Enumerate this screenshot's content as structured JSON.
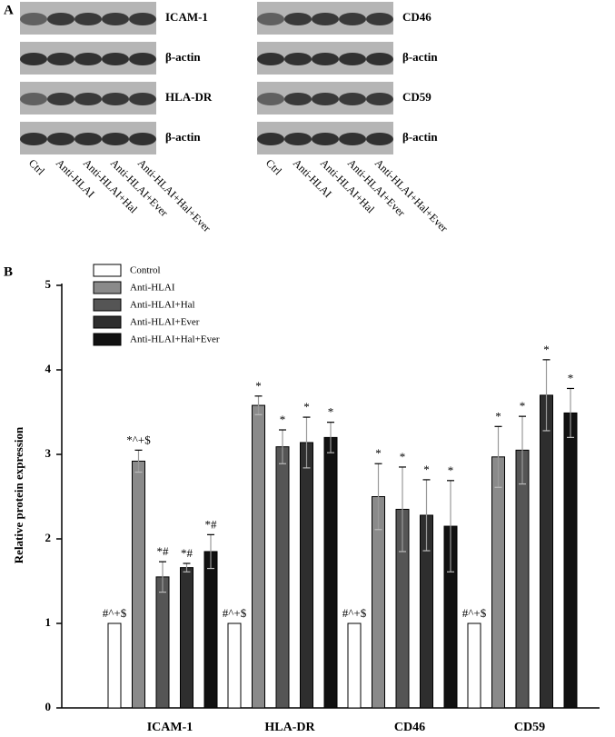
{
  "panel_a": {
    "label": "A",
    "blots": [
      {
        "rows": [
          "ICAM-1",
          "β-actin",
          "HLA-DR",
          "β-actin"
        ],
        "lanes": [
          "Ctrl",
          "Anti-HLAI",
          "Anti-HLAI+Hal",
          "Anti-HLAI+Ever",
          "Anti-HLAI+Hal+Ever"
        ]
      },
      {
        "rows": [
          "CD46",
          "β-actin",
          "CD59",
          "β-actin"
        ],
        "lanes": [
          "Ctrl",
          "Anti-HLAI",
          "Anti-HLAI+Hal",
          "Anti-HLAI+Ever",
          "Anti-HLAI+Hal+Ever"
        ]
      }
    ]
  },
  "chart_data": {
    "type": "bar",
    "panel_label": "B",
    "y_label": "Relative protein expression",
    "categories": [
      "ICAM-1",
      "HLA-DR",
      "CD46",
      "CD59"
    ],
    "ylim": [
      0,
      5
    ],
    "yticks": [
      0,
      1,
      2,
      3,
      4,
      5
    ],
    "series": [
      {
        "name": "Control",
        "color": "#ffffff",
        "values": [
          1,
          1,
          1,
          1
        ],
        "errors": [
          0,
          0,
          0,
          0
        ],
        "annotations": [
          "#^+$",
          "#^+$",
          "#^+$",
          "#^+$"
        ]
      },
      {
        "name": "Anti-HLAI",
        "color": "#8a8a8a",
        "values": [
          2.92,
          3.58,
          2.5,
          2.97
        ],
        "errors": [
          0.13,
          0.11,
          0.39,
          0.36
        ],
        "annotations": [
          "*^+$",
          "*",
          "*",
          "*"
        ]
      },
      {
        "name": "Anti-HLAI+Hal",
        "color": "#555555",
        "values": [
          1.55,
          3.09,
          2.35,
          3.05
        ],
        "errors": [
          0.18,
          0.2,
          0.5,
          0.4
        ],
        "annotations": [
          "*#",
          "*",
          "*",
          "*"
        ]
      },
      {
        "name": "Anti-HLAI+Ever",
        "color": "#2e2e2e",
        "values": [
          1.66,
          3.14,
          2.28,
          3.7
        ],
        "errors": [
          0.05,
          0.3,
          0.42,
          0.42
        ],
        "annotations": [
          "*#",
          "*",
          "*",
          "*"
        ]
      },
      {
        "name": "Anti-HLAI+Hal+Ever",
        "color": "#111111",
        "values": [
          1.85,
          3.2,
          2.15,
          3.49
        ],
        "errors": [
          0.2,
          0.18,
          0.54,
          0.29
        ],
        "annotations": [
          "*#",
          "*",
          "*",
          "*"
        ]
      }
    ]
  }
}
